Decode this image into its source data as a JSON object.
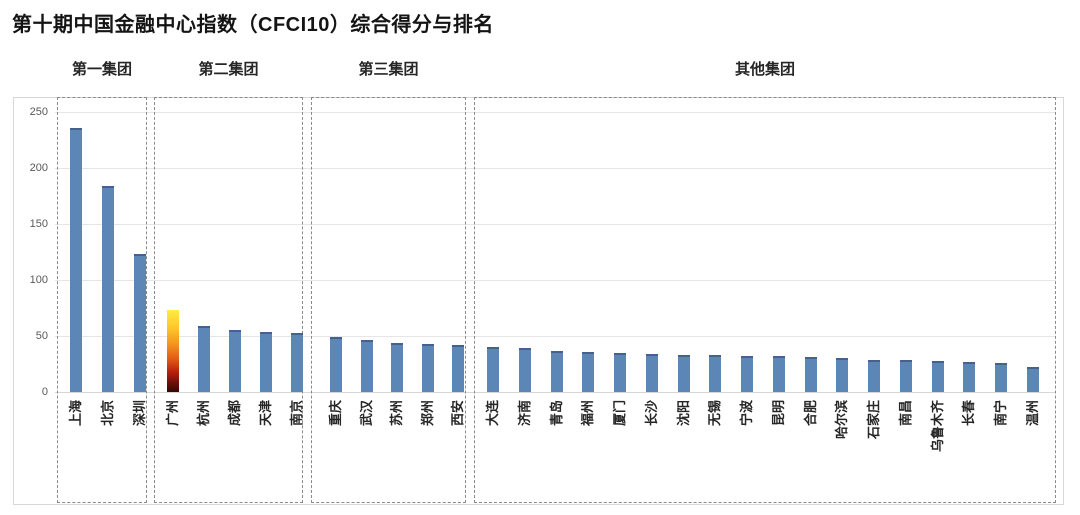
{
  "title": "第十期中国金融中心指数（CFCI10）综合得分与排名",
  "chart_data": {
    "type": "bar",
    "title": "第十期中国金融中心指数（CFCI10）综合得分与排名",
    "xlabel": "",
    "ylabel": "",
    "ylim": [
      0,
      250
    ],
    "yticks": [
      "0",
      "50",
      "100",
      "150",
      "200",
      "250"
    ],
    "grid": "horizontal",
    "legend": "none",
    "bar_color": "#5b86b5",
    "highlight_city": "广州",
    "highlight_gradient_top": "#ffec42",
    "highlight_gradient_bottom": "#320905",
    "groups": [
      {
        "label": "第一集团",
        "cities": [
          "上海",
          "北京",
          "深圳"
        ],
        "values": [
          236,
          184,
          123
        ]
      },
      {
        "label": "第二集团",
        "cities": [
          "广州",
          "杭州",
          "成都",
          "天津",
          "南京"
        ],
        "values": [
          73,
          59,
          55,
          54,
          53
        ]
      },
      {
        "label": "第三集团",
        "cities": [
          "重庆",
          "武汉",
          "苏州",
          "郑州",
          "西安"
        ],
        "values": [
          49,
          46,
          44,
          43,
          42
        ]
      },
      {
        "label": "其他集团",
        "cities": [
          "大连",
          "济南",
          "青岛",
          "福州",
          "厦门",
          "长沙",
          "沈阳",
          "无锡",
          "宁波",
          "昆明",
          "合肥",
          "哈尔滨",
          "石家庄",
          "南昌",
          "乌鲁木齐",
          "长春",
          "南宁",
          "温州"
        ],
        "values": [
          40,
          39,
          37,
          36,
          35,
          34,
          33,
          33,
          32,
          32,
          31,
          30,
          29,
          29,
          28,
          27,
          26,
          22
        ]
      }
    ]
  }
}
